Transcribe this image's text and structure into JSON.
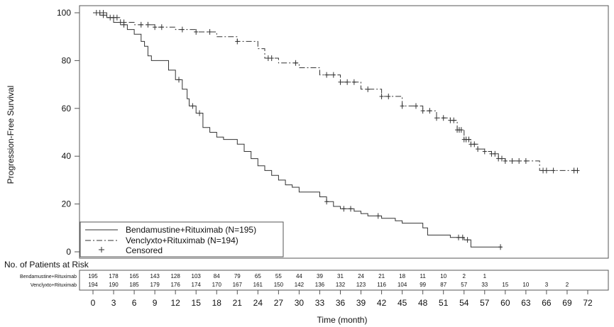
{
  "chart_data": {
    "type": "line",
    "xlabel": "Time (month)",
    "ylabel": "Progression-Free Survival",
    "xlim": [
      0,
      72
    ],
    "ylim": [
      0,
      100
    ],
    "x_ticks": [
      0,
      3,
      6,
      9,
      12,
      15,
      18,
      21,
      24,
      27,
      30,
      33,
      36,
      39,
      42,
      45,
      48,
      51,
      54,
      57,
      60,
      63,
      66,
      69,
      72
    ],
    "y_ticks": [
      0,
      20,
      40,
      60,
      80,
      100
    ],
    "grid": false,
    "legend_position": "bottom-left",
    "censored_label": "Censored",
    "series": [
      {
        "name": "Bendamustine+Rituximab (N=195)",
        "style": "solid",
        "color": "#333333",
        "points": [
          [
            0,
            100
          ],
          [
            1,
            99
          ],
          [
            2,
            98
          ],
          [
            3,
            96
          ],
          [
            4,
            95
          ],
          [
            5,
            93
          ],
          [
            6,
            91
          ],
          [
            7,
            88
          ],
          [
            7.5,
            86
          ],
          [
            8,
            82
          ],
          [
            8.5,
            80
          ],
          [
            10,
            80
          ],
          [
            11,
            76
          ],
          [
            12,
            72
          ],
          [
            13,
            68
          ],
          [
            13.7,
            64
          ],
          [
            14,
            61
          ],
          [
            15,
            58
          ],
          [
            16,
            52
          ],
          [
            17,
            50
          ],
          [
            18,
            48
          ],
          [
            19,
            47
          ],
          [
            21,
            45
          ],
          [
            22,
            42
          ],
          [
            23,
            39
          ],
          [
            24,
            36
          ],
          [
            25,
            34
          ],
          [
            26,
            32
          ],
          [
            27,
            30
          ],
          [
            28,
            28
          ],
          [
            29,
            27
          ],
          [
            30,
            25
          ],
          [
            32,
            25
          ],
          [
            33,
            23
          ],
          [
            34,
            21
          ],
          [
            35,
            19
          ],
          [
            36,
            18
          ],
          [
            38,
            17
          ],
          [
            39,
            16
          ],
          [
            40,
            15
          ],
          [
            42,
            14
          ],
          [
            44,
            13
          ],
          [
            45,
            12
          ],
          [
            47,
            12
          ],
          [
            48,
            10
          ],
          [
            48.7,
            7
          ],
          [
            51,
            7
          ],
          [
            52,
            6
          ],
          [
            54,
            5
          ],
          [
            55,
            2
          ],
          [
            59.5,
            2
          ]
        ],
        "censored": [
          0.5,
          1.5,
          2.5,
          4.5,
          12.5,
          14.5,
          15.5,
          34,
          36.5,
          37.5,
          41.5,
          53.2,
          53.8,
          54.5,
          59.3
        ]
      },
      {
        "name": "Venclyxto+Rituximab (N=194)",
        "style": "dashdot",
        "color": "#333333",
        "points": [
          [
            0,
            100
          ],
          [
            2,
            98
          ],
          [
            4,
            96
          ],
          [
            6,
            95
          ],
          [
            9,
            94
          ],
          [
            12,
            93
          ],
          [
            15,
            92
          ],
          [
            18,
            90
          ],
          [
            21,
            88
          ],
          [
            23,
            88
          ],
          [
            24,
            85
          ],
          [
            25,
            81
          ],
          [
            27,
            79
          ],
          [
            30,
            77
          ],
          [
            33,
            74
          ],
          [
            36,
            71
          ],
          [
            39,
            68
          ],
          [
            42,
            65
          ],
          [
            45,
            61
          ],
          [
            48,
            59
          ],
          [
            50,
            56
          ],
          [
            52,
            55
          ],
          [
            53,
            51
          ],
          [
            54,
            47
          ],
          [
            55,
            45
          ],
          [
            56,
            43
          ],
          [
            57,
            42
          ],
          [
            58,
            41
          ],
          [
            59,
            39
          ],
          [
            60,
            38
          ],
          [
            64,
            38
          ],
          [
            65,
            34
          ],
          [
            70.5,
            34
          ]
        ],
        "censored": [
          1,
          1.5,
          3,
          3.5,
          4.5,
          7,
          8,
          9,
          10,
          13,
          15,
          17,
          21,
          25.5,
          26,
          29.5,
          34,
          35,
          36,
          37,
          38,
          40,
          42,
          43,
          45,
          47,
          48,
          49,
          50,
          51,
          52,
          52.5,
          53,
          53.3,
          53.6,
          54,
          54.3,
          54.7,
          55,
          55.5,
          56,
          57,
          58,
          58.5,
          59,
          59.5,
          60,
          61,
          62,
          63,
          65.5,
          66,
          67,
          70,
          70.5
        ]
      }
    ],
    "risk_table": {
      "title": "No. of Patients at Risk",
      "rows": [
        {
          "name": "Bendamustine+Rituximab",
          "values": [
            "195",
            "178",
            "165",
            "143",
            "128",
            "103",
            "84",
            "79",
            "65",
            "55",
            "44",
            "39",
            "31",
            "24",
            "21",
            "18",
            "11",
            "10",
            "2",
            "1"
          ]
        },
        {
          "name": "Venclyxto+Rituximab",
          "values": [
            "194",
            "190",
            "185",
            "179",
            "176",
            "174",
            "170",
            "167",
            "161",
            "150",
            "142",
            "136",
            "132",
            "123",
            "116",
            "104",
            "99",
            "87",
            "57",
            "33",
            "15",
            "10",
            "3",
            "2"
          ]
        }
      ]
    }
  }
}
